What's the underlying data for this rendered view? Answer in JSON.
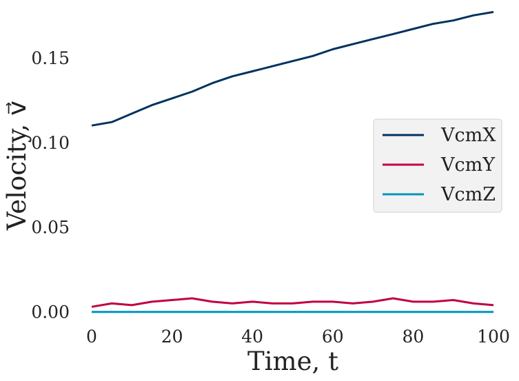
{
  "chart_data": {
    "type": "line",
    "title": "",
    "xlabel": "Time, t",
    "ylabel": "Velocity, v⃗",
    "xlim": [
      0,
      100
    ],
    "ylim": [
      -0.005,
      0.18
    ],
    "xticks": [
      0,
      20,
      40,
      60,
      80,
      100
    ],
    "yticks": [
      0.0,
      0.05,
      0.1,
      0.15
    ],
    "xtick_labels": [
      "0",
      "20",
      "40",
      "60",
      "80",
      "100"
    ],
    "ytick_labels": [
      "0.00",
      "0.05",
      "0.10",
      "0.15"
    ],
    "grid": false,
    "legend_position": "center-right",
    "series": [
      {
        "name": "VcmX",
        "color": "#00325f",
        "x": [
          0,
          5,
          10,
          15,
          20,
          25,
          30,
          35,
          40,
          45,
          50,
          55,
          60,
          65,
          70,
          75,
          80,
          85,
          90,
          95,
          100
        ],
        "values": [
          0.11,
          0.112,
          0.117,
          0.122,
          0.126,
          0.13,
          0.135,
          0.139,
          0.142,
          0.145,
          0.148,
          0.151,
          0.155,
          0.158,
          0.161,
          0.164,
          0.167,
          0.17,
          0.172,
          0.175,
          0.177
        ]
      },
      {
        "name": "VcmY",
        "color": "#c1003f",
        "x": [
          0,
          5,
          10,
          15,
          20,
          25,
          30,
          35,
          40,
          45,
          50,
          55,
          60,
          65,
          70,
          75,
          80,
          85,
          90,
          95,
          100
        ],
        "values": [
          0.003,
          0.005,
          0.004,
          0.006,
          0.007,
          0.008,
          0.006,
          0.005,
          0.006,
          0.005,
          0.005,
          0.006,
          0.006,
          0.005,
          0.006,
          0.008,
          0.006,
          0.006,
          0.007,
          0.005,
          0.004
        ]
      },
      {
        "name": "VcmZ",
        "color": "#0095b8",
        "x": [
          0,
          100
        ],
        "values": [
          0.0,
          0.0
        ]
      }
    ]
  }
}
